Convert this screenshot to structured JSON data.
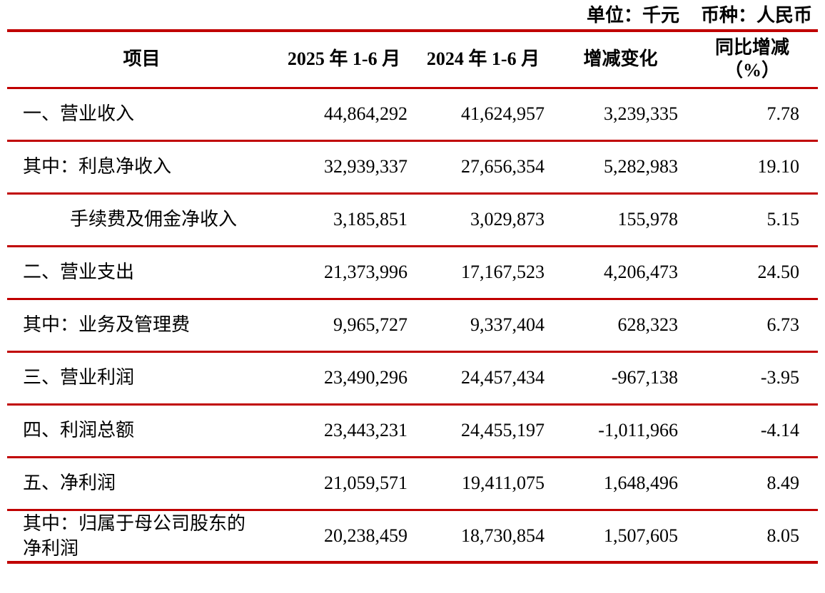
{
  "meta": {
    "unit_label": "单位：千元",
    "currency_label": "币种：人民币"
  },
  "colors": {
    "rule_red": "#c00000",
    "text": "#000000"
  },
  "table": {
    "columns": [
      {
        "label": "项目"
      },
      {
        "label": "2025 年 1-6 月"
      },
      {
        "label": "2024 年 1-6 月"
      },
      {
        "label": "增减变化"
      },
      {
        "label": "同比增减",
        "label2": "（%）"
      }
    ],
    "rows": [
      {
        "item": "一、营业收入",
        "indent": 0,
        "v2025": "44,864,292",
        "v2024": "41,624,957",
        "change": "3,239,335",
        "yoy": "7.78"
      },
      {
        "item": "其中：利息净收入",
        "indent": 0,
        "v2025": "32,939,337",
        "v2024": "27,656,354",
        "change": "5,282,983",
        "yoy": "19.10"
      },
      {
        "item": "手续费及佣金净收入",
        "indent": 1,
        "v2025": "3,185,851",
        "v2024": "3,029,873",
        "change": "155,978",
        "yoy": "5.15"
      },
      {
        "item": "二、营业支出",
        "indent": 0,
        "v2025": "21,373,996",
        "v2024": "17,167,523",
        "change": "4,206,473",
        "yoy": "24.50"
      },
      {
        "item": "其中：业务及管理费",
        "indent": 0,
        "v2025": "9,965,727",
        "v2024": "9,337,404",
        "change": "628,323",
        "yoy": "6.73"
      },
      {
        "item": "三、营业利润",
        "indent": 0,
        "v2025": "23,490,296",
        "v2024": "24,457,434",
        "change": "-967,138",
        "yoy": "-3.95"
      },
      {
        "item": "四、利润总额",
        "indent": 0,
        "v2025": "23,443,231",
        "v2024": "24,455,197",
        "change": "-1,011,966",
        "yoy": "-4.14"
      },
      {
        "item": "五、净利润",
        "indent": 0,
        "v2025": "21,059,571",
        "v2024": "19,411,075",
        "change": "1,648,496",
        "yoy": "8.49"
      },
      {
        "item": "其中：归属于母公司股东的净利润",
        "indent": 0,
        "v2025": "20,238,459",
        "v2024": "18,730,854",
        "change": "1,507,605",
        "yoy": "8.05"
      }
    ]
  }
}
